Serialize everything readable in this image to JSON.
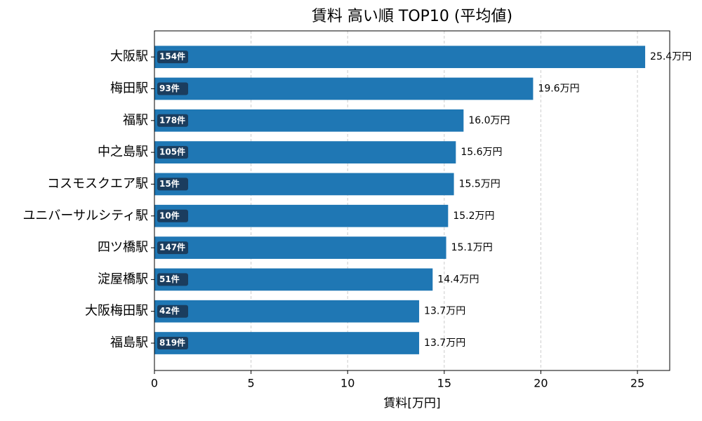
{
  "chart_data": {
    "type": "barh",
    "title": "賃料 高い順 TOP10 (平均値)",
    "x_label": "賃料[万円]",
    "categories": [
      "大阪駅",
      "梅田駅",
      "福駅",
      "中之島駅",
      "コスモスクエア駅",
      "ユニバーサルシティ駅",
      "四ツ橋駅",
      "淀屋橋駅",
      "大阪梅田駅",
      "福島駅"
    ],
    "values": [
      25.4,
      19.6,
      16.0,
      15.6,
      15.5,
      15.2,
      15.1,
      14.4,
      13.7,
      13.7
    ],
    "value_labels": [
      "25.4万円",
      "19.6万円",
      "16.0万円",
      "15.6万円",
      "15.5万円",
      "15.2万円",
      "15.1万円",
      "14.4万円",
      "13.7万円",
      "13.7万円"
    ],
    "count_labels": [
      "154件",
      "93件",
      "178件",
      "105件",
      "15件",
      "10件",
      "147件",
      "51件",
      "42件",
      "819件"
    ],
    "color": "#1f77b4",
    "xlim": [
      0,
      26.67
    ],
    "xticks": [
      0,
      5,
      10,
      15,
      20,
      25
    ],
    "grid": true
  }
}
